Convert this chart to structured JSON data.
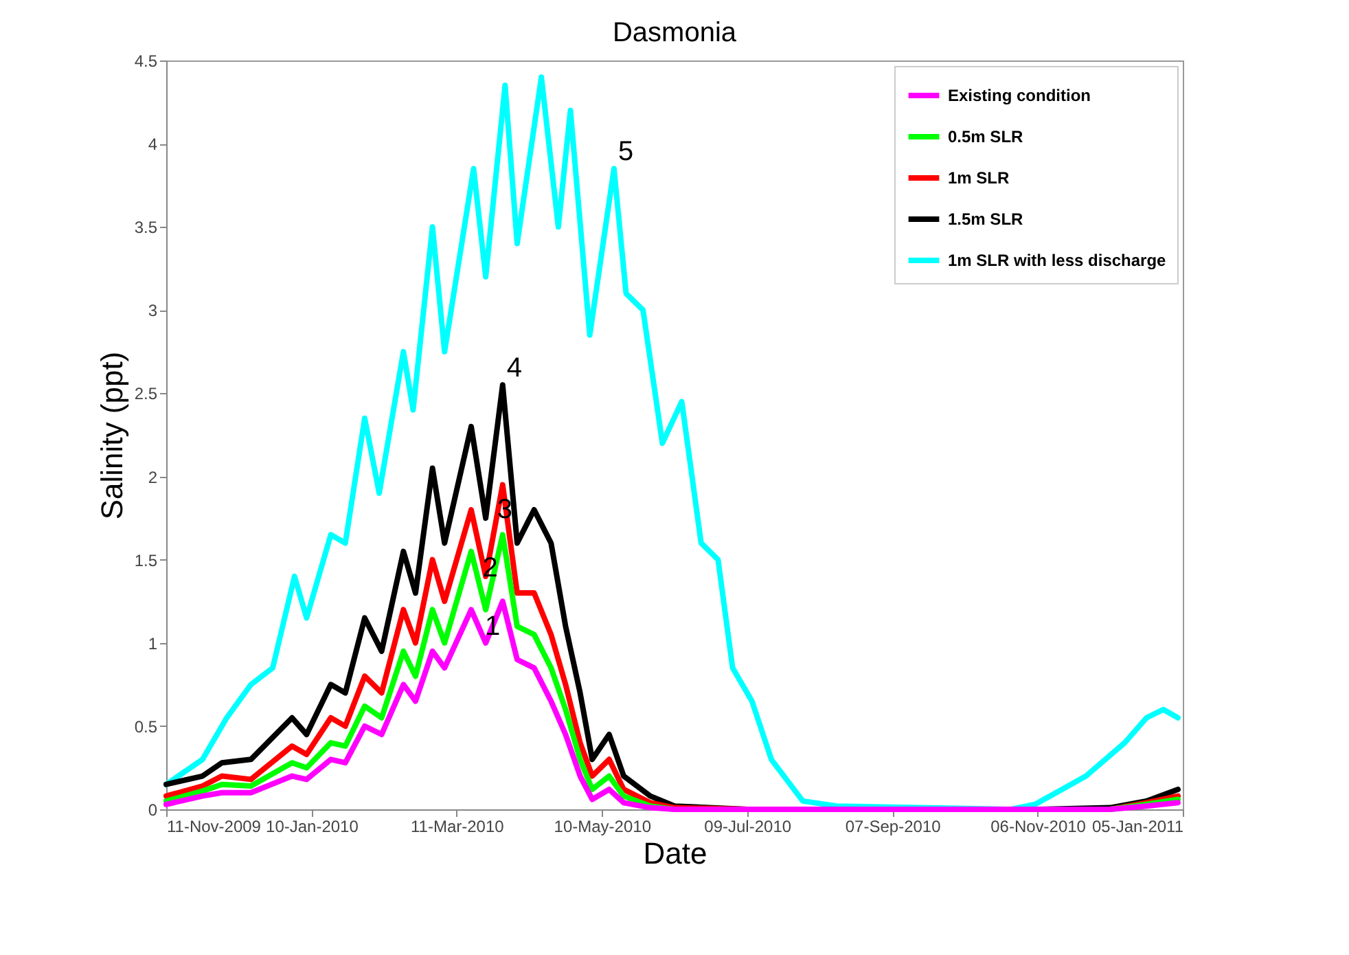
{
  "chart_data": {
    "type": "line",
    "title": "Dasmonia",
    "xlabel": "Date",
    "ylabel": "Salinity (ppt)",
    "x": [
      "2009-11-11",
      "2009-11-26",
      "2009-12-04",
      "2009-12-16",
      "2010-01-02",
      "2010-01-08",
      "2010-01-18",
      "2010-01-24",
      "2010-02-01",
      "2010-02-08",
      "2010-02-17",
      "2010-02-22",
      "2010-03-01",
      "2010-03-06",
      "2010-03-17",
      "2010-03-23",
      "2010-03-30",
      "2010-04-05",
      "2010-04-12",
      "2010-04-19",
      "2010-04-25",
      "2010-05-01",
      "2010-05-06",
      "2010-05-13",
      "2010-05-19",
      "2010-05-30",
      "2010-06-09",
      "2010-07-09",
      "2010-09-07",
      "2010-11-06",
      "2010-12-06",
      "2010-12-21",
      "2011-01-03"
    ],
    "series": [
      {
        "name": "Existing condition",
        "color": "#ff00ff",
        "values": [
          0.03,
          0.08,
          0.1,
          0.1,
          0.2,
          0.18,
          0.3,
          0.28,
          0.5,
          0.45,
          0.75,
          0.65,
          0.95,
          0.85,
          1.2,
          1.0,
          1.25,
          0.9,
          0.85,
          0.65,
          0.45,
          0.2,
          0.06,
          0.12,
          0.04,
          0.01,
          0.0,
          0.0,
          0.0,
          0.0,
          0.0,
          0.02,
          0.04
        ]
      },
      {
        "name": "0.5m SLR",
        "color": "#00ff00",
        "values": [
          0.05,
          0.11,
          0.15,
          0.14,
          0.28,
          0.25,
          0.4,
          0.38,
          0.62,
          0.55,
          0.95,
          0.8,
          1.2,
          1.0,
          1.55,
          1.2,
          1.65,
          1.1,
          1.05,
          0.85,
          0.6,
          0.3,
          0.12,
          0.2,
          0.08,
          0.02,
          0.0,
          0.0,
          0.0,
          0.0,
          0.0,
          0.03,
          0.06
        ]
      },
      {
        "name": "1m SLR",
        "color": "#ff0000",
        "values": [
          0.08,
          0.14,
          0.2,
          0.18,
          0.38,
          0.33,
          0.55,
          0.5,
          0.8,
          0.7,
          1.2,
          1.0,
          1.5,
          1.25,
          1.8,
          1.4,
          1.95,
          1.3,
          1.3,
          1.05,
          0.75,
          0.4,
          0.2,
          0.3,
          0.12,
          0.04,
          0.01,
          0.0,
          0.0,
          0.0,
          0.0,
          0.04,
          0.08
        ]
      },
      {
        "name": "1.5m SLR",
        "color": "#000000",
        "values": [
          0.15,
          0.2,
          0.28,
          0.3,
          0.55,
          0.45,
          0.75,
          0.7,
          1.15,
          0.95,
          1.55,
          1.3,
          2.05,
          1.6,
          2.3,
          1.75,
          2.55,
          1.6,
          1.8,
          1.6,
          1.1,
          0.7,
          0.3,
          0.45,
          0.2,
          0.08,
          0.02,
          0.0,
          0.0,
          0.0,
          0.01,
          0.05,
          0.12
        ]
      },
      {
        "name": "1m SLR with less discharge",
        "color": "#00ffff",
        "x": [
          "2009-11-11",
          "2009-11-26",
          "2009-12-06",
          "2009-12-16",
          "2009-12-25",
          "2010-01-03",
          "2010-01-08",
          "2010-01-18",
          "2010-01-24",
          "2010-02-01",
          "2010-02-07",
          "2010-02-17",
          "2010-02-21",
          "2010-03-01",
          "2010-03-06",
          "2010-03-18",
          "2010-03-23",
          "2010-03-31",
          "2010-04-05",
          "2010-04-15",
          "2010-04-22",
          "2010-04-27",
          "2010-05-05",
          "2010-05-15",
          "2010-05-20",
          "2010-05-27",
          "2010-06-04",
          "2010-06-12",
          "2010-06-20",
          "2010-06-27",
          "2010-07-03",
          "2010-07-11",
          "2010-07-19",
          "2010-08-01",
          "2010-08-15",
          "2010-10-26",
          "2010-11-05",
          "2010-11-26",
          "2010-12-12",
          "2010-12-21",
          "2010-12-28",
          "2011-01-03"
        ],
        "values": [
          0.15,
          0.3,
          0.55,
          0.75,
          0.85,
          1.4,
          1.15,
          1.65,
          1.6,
          2.35,
          1.9,
          2.75,
          2.4,
          3.5,
          2.75,
          3.85,
          3.2,
          4.35,
          3.4,
          4.4,
          3.5,
          4.2,
          2.85,
          3.85,
          3.1,
          3.0,
          2.2,
          2.45,
          1.6,
          1.5,
          0.85,
          0.65,
          0.3,
          0.05,
          0.02,
          0.0,
          0.03,
          0.2,
          0.4,
          0.55,
          0.6,
          0.55
        ]
      }
    ],
    "xlim": [
      "2009-11-11",
      "2011-01-05"
    ],
    "xticks": [
      {
        "value": "2009-11-11",
        "label": "11-Nov-2009"
      },
      {
        "value": "2010-01-10",
        "label": "10-Jan-2010"
      },
      {
        "value": "2010-03-11",
        "label": "11-Mar-2010"
      },
      {
        "value": "2010-05-10",
        "label": "10-May-2010"
      },
      {
        "value": "2010-07-09",
        "label": "09-Jul-2010"
      },
      {
        "value": "2010-09-07",
        "label": "07-Sep-2010"
      },
      {
        "value": "2010-11-06",
        "label": "06-Nov-2010"
      },
      {
        "value": "2011-01-05",
        "label": "05-Jan-2011"
      }
    ],
    "ylim": [
      0,
      4.5
    ],
    "yticks": [
      0,
      0.5,
      1,
      1.5,
      2,
      2.5,
      3,
      3.5,
      4,
      4.5
    ],
    "grid": false,
    "legend": "top right",
    "marker": "none",
    "line_style": "solid",
    "annotations": [
      {
        "text": "1",
        "x": "2010-03-21",
        "y": 1.0
      },
      {
        "text": "2",
        "x": "2010-03-20",
        "y": 1.35
      },
      {
        "text": "3",
        "x": "2010-03-26",
        "y": 1.7
      },
      {
        "text": "4",
        "x": "2010-03-30",
        "y": 2.55
      },
      {
        "text": "5",
        "x": "2010-05-15",
        "y": 3.85
      }
    ]
  }
}
